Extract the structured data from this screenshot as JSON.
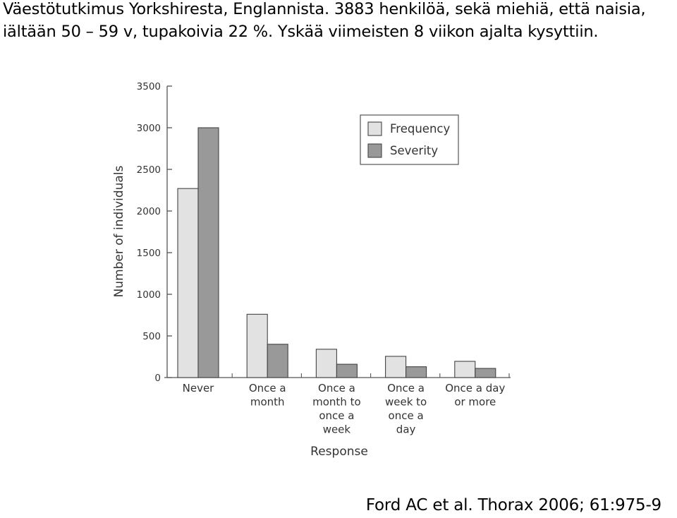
{
  "caption": {
    "line1": "Väestötutkimus Yorkshiresta, Englannista. 3883 henkilöä, sekä miehiä, että naisia,",
    "line2": "iältään 50 – 59 v, tupakoivia 22 %. Yskää viimeisten 8 viikon ajalta kysyttiin."
  },
  "citation": "Ford AC et al. Thorax 2006; 61:975-9",
  "chart_data": {
    "type": "bar",
    "title": "",
    "xlabel": "Response",
    "ylabel": "Number of individuals",
    "ylim": [
      0,
      3500
    ],
    "yticks": [
      "0",
      "500",
      "1000",
      "1500",
      "2000",
      "2500",
      "3000",
      "3500"
    ],
    "categories": [
      [
        "Never"
      ],
      [
        "Once a",
        "month"
      ],
      [
        "Once a",
        "month to",
        "once a",
        "week"
      ],
      [
        "Once a",
        "week to",
        "once a",
        "day"
      ],
      [
        "Once a day",
        "or more"
      ]
    ],
    "series": [
      {
        "name": "Frequency",
        "color": "#e2e2e2",
        "values": [
          2270,
          760,
          340,
          255,
          195
        ]
      },
      {
        "name": "Severity",
        "color": "#999999",
        "values": [
          3000,
          400,
          160,
          130,
          110
        ]
      }
    ],
    "legend_position": "top-right",
    "grid": false
  }
}
